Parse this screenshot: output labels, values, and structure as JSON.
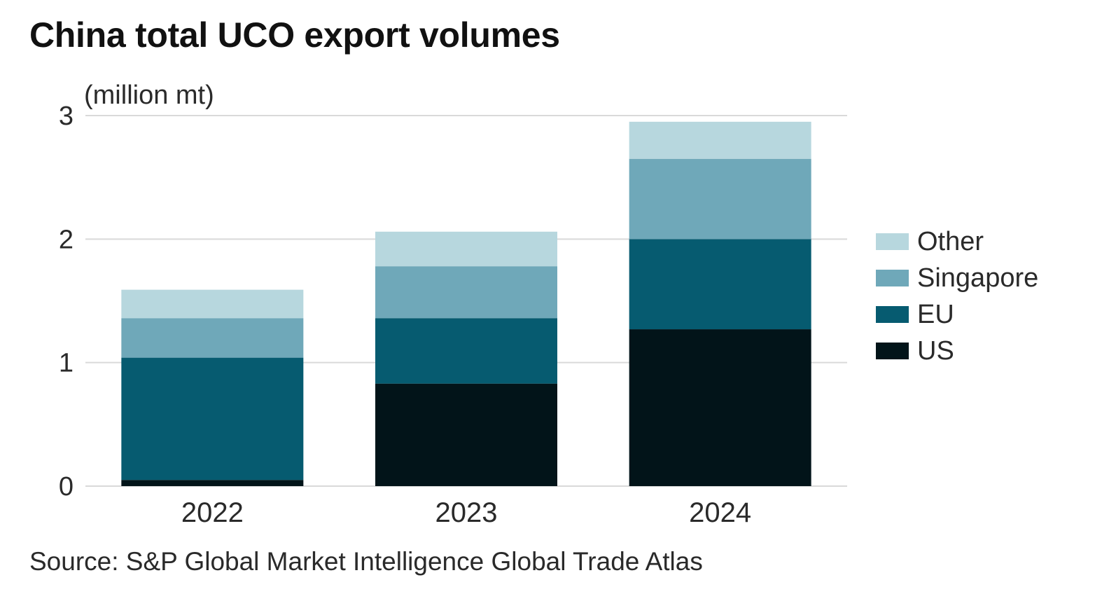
{
  "chart_data": {
    "type": "bar",
    "stacked": true,
    "title": "China total UCO export volumes",
    "ylabel": "(million mt)",
    "xlabel": "",
    "source": "Source: S&P Global Market Intelligence Global Trade Atlas",
    "categories": [
      "2022",
      "2023",
      "2024"
    ],
    "ylim": [
      0,
      3
    ],
    "yticks": [
      0,
      1,
      2,
      3
    ],
    "grid": true,
    "legend_position": "right",
    "series": [
      {
        "name": "US",
        "color": "#021419",
        "values": [
          0.05,
          0.83,
          1.27
        ]
      },
      {
        "name": "EU",
        "color": "#065b70",
        "values": [
          0.99,
          0.53,
          0.73
        ]
      },
      {
        "name": "Singapore",
        "color": "#6fa8b9",
        "values": [
          0.32,
          0.42,
          0.65
        ]
      },
      {
        "name": "Other",
        "color": "#b7d7de",
        "values": [
          0.23,
          0.28,
          0.3
        ]
      }
    ]
  }
}
